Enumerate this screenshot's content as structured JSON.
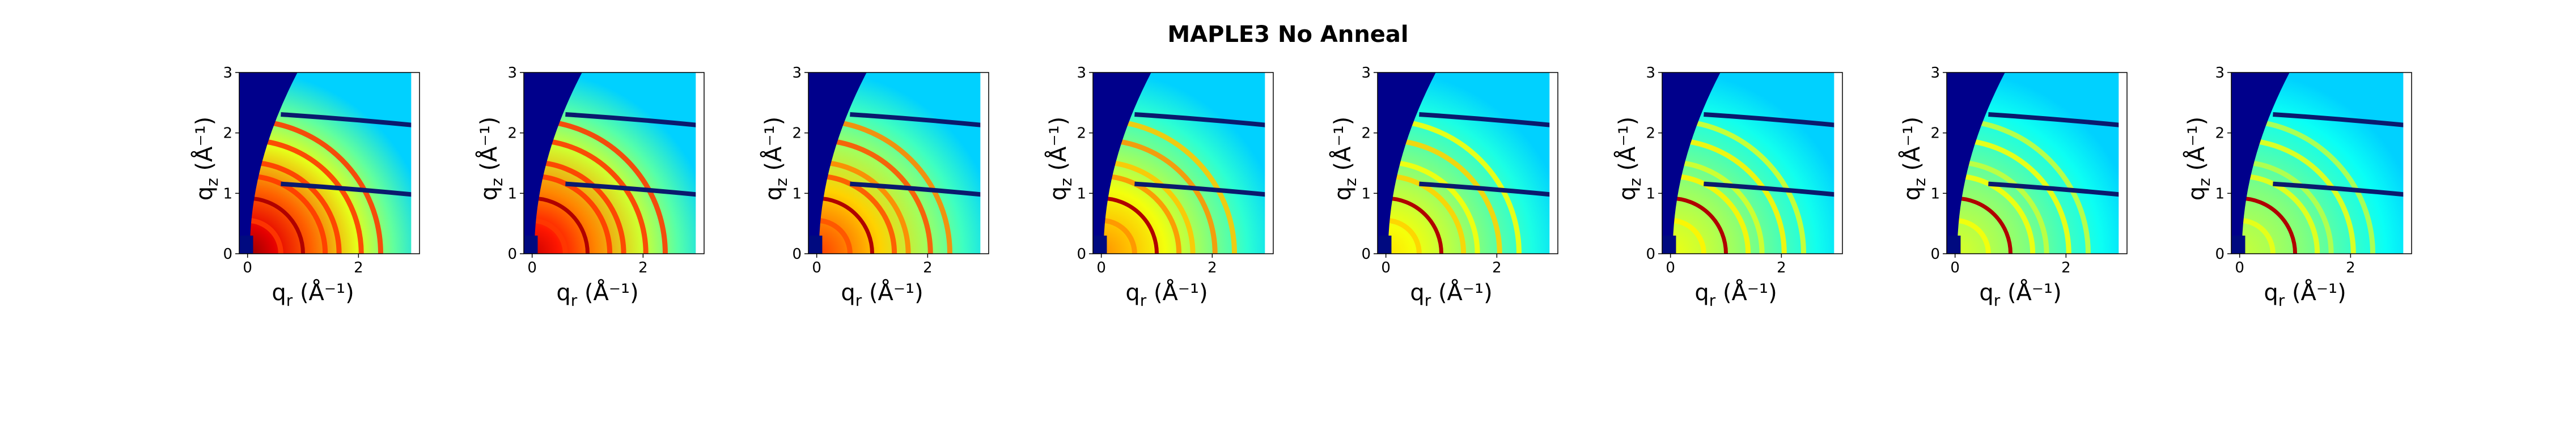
{
  "title": "MAPLE3 No Anneal",
  "chart_data": [
    {
      "type": "heatmap",
      "panel": 1,
      "xlabel": "q_r (Å⁻¹)",
      "ylabel": "q_z (Å⁻¹)",
      "xlim": [
        -0.15,
        3.1
      ],
      "ylim": [
        0,
        3
      ],
      "x_ticks": [
        0,
        2
      ],
      "y_ticks": [
        0,
        1,
        2,
        3
      ],
      "colormap": "jet",
      "intensity_level": 1.0,
      "ring_radii": [
        0.6,
        1.0,
        1.4,
        1.65,
        2.05,
        2.4
      ],
      "highlight_ring_radius": 1.0,
      "horizon_lines_qz": [
        1.1,
        2.25
      ],
      "grid": false
    },
    {
      "type": "heatmap",
      "panel": 2,
      "xlabel": "q_r (Å⁻¹)",
      "ylabel": "q_z (Å⁻¹)",
      "xlim": [
        -0.15,
        3.1
      ],
      "ylim": [
        0,
        3
      ],
      "x_ticks": [
        0,
        2
      ],
      "y_ticks": [
        0,
        1,
        2,
        3
      ],
      "colormap": "jet",
      "intensity_level": 0.9,
      "ring_radii": [
        0.6,
        1.0,
        1.4,
        1.65,
        2.05,
        2.4
      ],
      "highlight_ring_radius": 1.0,
      "horizon_lines_qz": [
        1.1,
        2.25
      ],
      "grid": false
    },
    {
      "type": "heatmap",
      "panel": 3,
      "xlabel": "q_r (Å⁻¹)",
      "ylabel": "q_z (Å⁻¹)",
      "xlim": [
        -0.15,
        3.1
      ],
      "ylim": [
        0,
        3
      ],
      "x_ticks": [
        0,
        2
      ],
      "y_ticks": [
        0,
        1,
        2,
        3
      ],
      "colormap": "jet",
      "intensity_level": 0.7,
      "ring_radii": [
        0.6,
        1.0,
        1.4,
        1.65,
        2.05,
        2.4
      ],
      "highlight_ring_radius": 1.0,
      "horizon_lines_qz": [
        1.1,
        2.25
      ],
      "grid": false
    },
    {
      "type": "heatmap",
      "panel": 4,
      "xlabel": "q_r (Å⁻¹)",
      "ylabel": "q_z (Å⁻¹)",
      "xlim": [
        -0.15,
        3.1
      ],
      "ylim": [
        0,
        3
      ],
      "x_ticks": [
        0,
        2
      ],
      "y_ticks": [
        0,
        1,
        2,
        3
      ],
      "colormap": "jet",
      "intensity_level": 0.55,
      "ring_radii": [
        0.6,
        1.0,
        1.4,
        1.65,
        2.05,
        2.4
      ],
      "highlight_ring_radius": 1.0,
      "horizon_lines_qz": [
        1.1,
        2.25
      ],
      "grid": false
    },
    {
      "type": "heatmap",
      "panel": 5,
      "xlabel": "q_r (Å⁻¹)",
      "ylabel": "q_z (Å⁻¹)",
      "xlim": [
        -0.15,
        3.1
      ],
      "ylim": [
        0,
        3
      ],
      "x_ticks": [
        0,
        2
      ],
      "y_ticks": [
        0,
        1,
        2,
        3
      ],
      "colormap": "jet",
      "intensity_level": 0.4,
      "ring_radii": [
        0.6,
        1.0,
        1.4,
        1.65,
        2.05,
        2.4
      ],
      "highlight_ring_radius": 1.0,
      "horizon_lines_qz": [
        1.1,
        2.25
      ],
      "grid": false
    },
    {
      "type": "heatmap",
      "panel": 6,
      "xlabel": "q_r (Å⁻¹)",
      "ylabel": "q_z (Å⁻¹)",
      "xlim": [
        -0.15,
        3.1
      ],
      "ylim": [
        0,
        3
      ],
      "x_ticks": [
        0,
        2
      ],
      "y_ticks": [
        0,
        1,
        2,
        3
      ],
      "colormap": "jet",
      "intensity_level": 0.32,
      "ring_radii": [
        0.6,
        1.0,
        1.4,
        1.65,
        2.05,
        2.4
      ],
      "highlight_ring_radius": 1.0,
      "horizon_lines_qz": [
        1.1,
        2.25
      ],
      "grid": false
    },
    {
      "type": "heatmap",
      "panel": 7,
      "xlabel": "q_r (Å⁻¹)",
      "ylabel": "q_z (Å⁻¹)",
      "xlim": [
        -0.15,
        3.1
      ],
      "ylim": [
        0,
        3
      ],
      "x_ticks": [
        0,
        2
      ],
      "y_ticks": [
        0,
        1,
        2,
        3
      ],
      "colormap": "jet",
      "intensity_level": 0.28,
      "ring_radii": [
        0.6,
        1.0,
        1.4,
        1.65,
        2.05,
        2.4
      ],
      "highlight_ring_radius": 1.0,
      "horizon_lines_qz": [
        1.1,
        2.25
      ],
      "grid": false
    },
    {
      "type": "heatmap",
      "panel": 8,
      "xlabel": "q_r (Å⁻¹)",
      "ylabel": "q_z (Å⁻¹)",
      "xlim": [
        -0.15,
        3.1
      ],
      "ylim": [
        0,
        3
      ],
      "x_ticks": [
        0,
        2
      ],
      "y_ticks": [
        0,
        1,
        2,
        3
      ],
      "colormap": "jet",
      "intensity_level": 0.25,
      "ring_radii": [
        0.6,
        1.0,
        1.4,
        1.65,
        2.05,
        2.4
      ],
      "highlight_ring_radius": 1.0,
      "horizon_lines_qz": [
        1.1,
        2.25
      ],
      "grid": false
    }
  ]
}
